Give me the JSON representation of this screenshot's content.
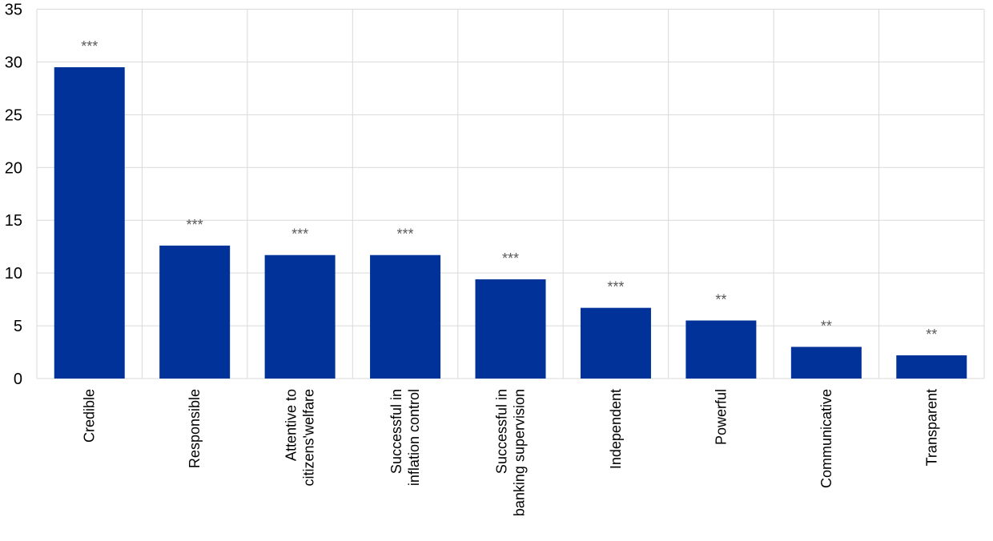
{
  "chart_data": {
    "type": "bar",
    "categories": [
      [
        "Credible"
      ],
      [
        "Responsible"
      ],
      [
        "Attentive to",
        "citizens'welfare"
      ],
      [
        "Successful in",
        "inflation control"
      ],
      [
        "Successful in",
        "banking supervision"
      ],
      [
        "Independent"
      ],
      [
        "Powerful"
      ],
      [
        "Communicative"
      ],
      [
        "Transparent"
      ]
    ],
    "values": [
      29.5,
      12.6,
      11.7,
      11.7,
      9.4,
      6.7,
      5.5,
      3.0,
      2.2
    ],
    "annotations": [
      "***",
      "***",
      "***",
      "***",
      "***",
      "***",
      "**",
      "**",
      "**"
    ],
    "ylim": [
      0,
      35
    ],
    "yticks": [
      "0",
      "5",
      "10",
      "15",
      "20",
      "25",
      "30",
      "35"
    ],
    "grid": true,
    "bar_color": "#003299",
    "grid_color": "#d9d9d9",
    "annotation_color": "#595959"
  }
}
